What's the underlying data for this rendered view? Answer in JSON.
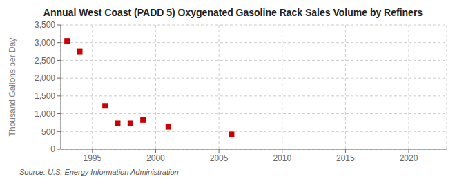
{
  "chart_data": {
    "type": "scatter",
    "title": "Annual West Coast (PADD 5) Oxygenated Gasoline Rack Sales Volume by Refiners",
    "y_label": "Thousand Gallons per Day",
    "annotations": [
      "Source: U.S. Energy Information Administration"
    ],
    "x": [
      1993,
      1994,
      1996,
      1997,
      1998,
      1999,
      2001,
      2006
    ],
    "values": [
      3050,
      2750,
      1220,
      730,
      730,
      820,
      630,
      420
    ],
    "color": "#cc0000",
    "marker": "square",
    "xlim": [
      1992.5,
      2023
    ],
    "xticks": [
      1995,
      2000,
      2005,
      2010,
      2015,
      2020
    ],
    "ylim": [
      0,
      3500
    ],
    "yticks": [
      0,
      500,
      {
        "value": 1000,
        "label": "1,000"
      },
      {
        "value": 1500,
        "label": "1,500"
      },
      {
        "value": 2000,
        "label": "2,000"
      },
      {
        "value": 2500,
        "label": "2,500"
      },
      {
        "value": 3000,
        "label": "3,000"
      },
      {
        "value": 3500,
        "label": "3,500"
      }
    ],
    "grid": true
  }
}
